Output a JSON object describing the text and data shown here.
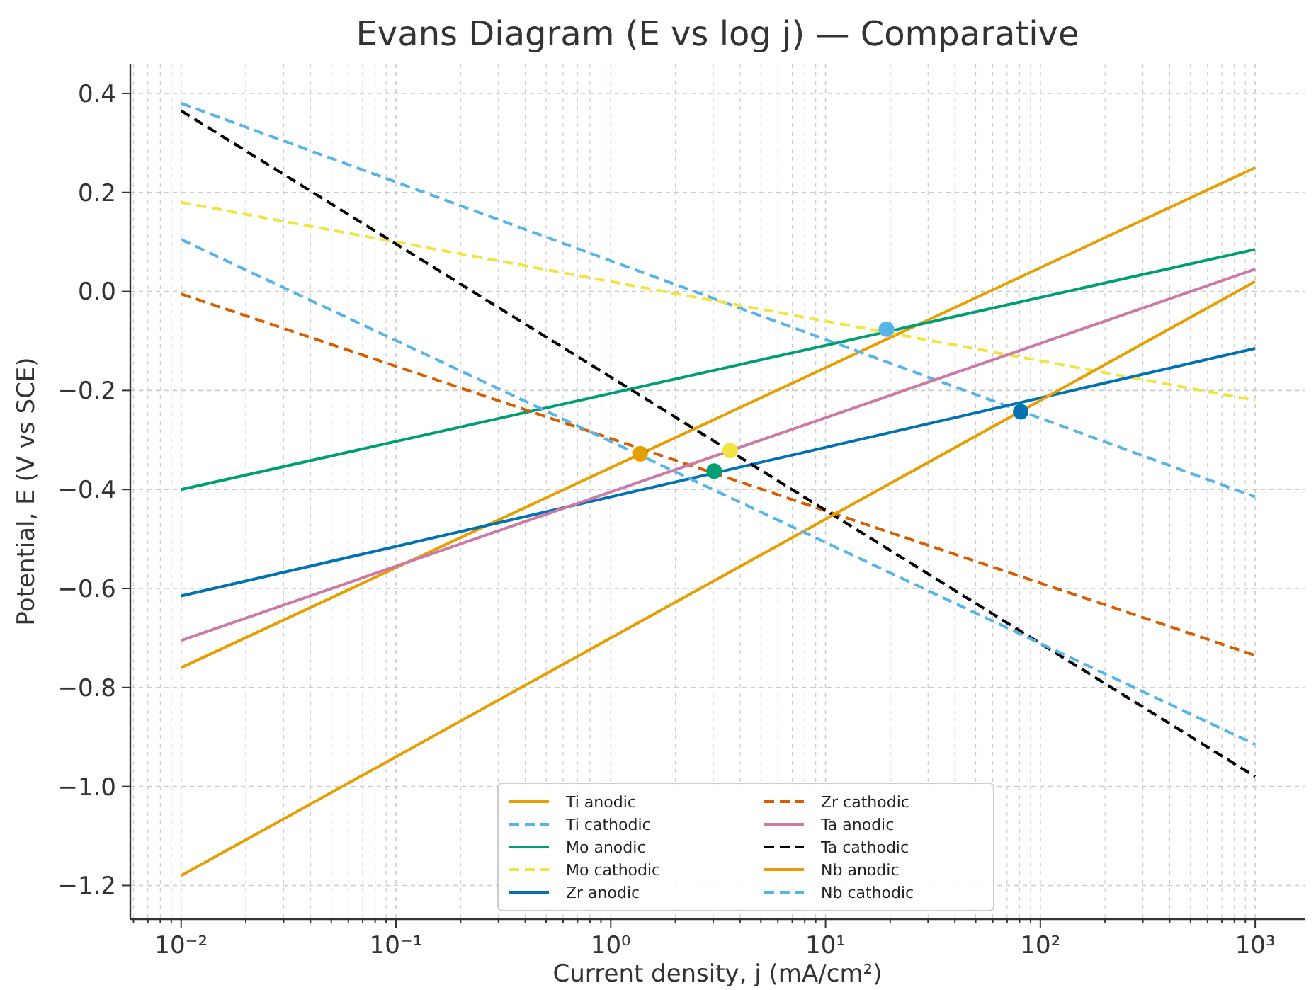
{
  "chart_data": {
    "type": "line",
    "title": "Evans Diagram (E vs log j) — Comparative",
    "xlabel": "Current density, j (mA/cm²)",
    "ylabel": "Potential, E (V vs SCE)",
    "log": "x",
    "grid": true,
    "legend": "bottom",
    "xlim": [
      0.0058,
      1700
    ],
    "ylim": [
      -1.268,
      0.46
    ],
    "xticks": [
      {
        "value": 0.006,
        "label": null
      },
      {
        "value": 0.007,
        "label": null
      },
      {
        "value": 0.008,
        "label": null
      },
      {
        "value": 0.009,
        "label": null
      },
      {
        "value": 0.01,
        "label": "10⁻²"
      },
      {
        "value": 0.02,
        "label": null
      },
      {
        "value": 0.03,
        "label": null
      },
      {
        "value": 0.04,
        "label": null
      },
      {
        "value": 0.05,
        "label": null
      },
      {
        "value": 0.06,
        "label": null
      },
      {
        "value": 0.07,
        "label": null
      },
      {
        "value": 0.08,
        "label": null
      },
      {
        "value": 0.09,
        "label": null
      },
      {
        "value": 0.1,
        "label": "10⁻¹"
      },
      {
        "value": 0.2,
        "label": null
      },
      {
        "value": 0.3,
        "label": null
      },
      {
        "value": 0.4,
        "label": null
      },
      {
        "value": 0.5,
        "label": null
      },
      {
        "value": 0.6,
        "label": null
      },
      {
        "value": 0.7,
        "label": null
      },
      {
        "value": 0.8,
        "label": null
      },
      {
        "value": 0.9,
        "label": null
      },
      {
        "value": 1,
        "label": "10⁰"
      },
      {
        "value": 2,
        "label": null
      },
      {
        "value": 3,
        "label": null
      },
      {
        "value": 4,
        "label": null
      },
      {
        "value": 5,
        "label": null
      },
      {
        "value": 6,
        "label": null
      },
      {
        "value": 7,
        "label": null
      },
      {
        "value": 8,
        "label": null
      },
      {
        "value": 9,
        "label": null
      },
      {
        "value": 10,
        "label": "10¹"
      },
      {
        "value": 20,
        "label": null
      },
      {
        "value": 30,
        "label": null
      },
      {
        "value": 40,
        "label": null
      },
      {
        "value": 50,
        "label": null
      },
      {
        "value": 60,
        "label": null
      },
      {
        "value": 70,
        "label": null
      },
      {
        "value": 80,
        "label": null
      },
      {
        "value": 90,
        "label": null
      },
      {
        "value": 100,
        "label": "10²"
      },
      {
        "value": 200,
        "label": null
      },
      {
        "value": 300,
        "label": null
      },
      {
        "value": 400,
        "label": null
      },
      {
        "value": 500,
        "label": null
      },
      {
        "value": 600,
        "label": null
      },
      {
        "value": 700,
        "label": null
      },
      {
        "value": 800,
        "label": null
      },
      {
        "value": 900,
        "label": null
      },
      {
        "value": 1000,
        "label": "10³"
      }
    ],
    "yticks": [
      {
        "value": -1.2,
        "label": "−1.2"
      },
      {
        "value": -1.0,
        "label": "−1.0"
      },
      {
        "value": -0.8,
        "label": "−0.8"
      },
      {
        "value": -0.6,
        "label": "−0.6"
      },
      {
        "value": -0.4,
        "label": "−0.4"
      },
      {
        "value": -0.2,
        "label": "−0.2"
      },
      {
        "value": 0,
        "label": "0.0"
      },
      {
        "value": 0.2,
        "label": "0.2"
      },
      {
        "value": 0.4,
        "label": "0.4"
      }
    ],
    "series": [
      {
        "name": "Ti anodic",
        "color": "#e69f00",
        "line_style": "solid",
        "x": [
          0.01,
          1000
        ],
        "values": [
          -0.76,
          0.25
        ]
      },
      {
        "name": "Ti cathodic",
        "color": "#56b4e9",
        "line_style": "dashed",
        "x": [
          0.01,
          1000
        ],
        "values": [
          0.38,
          -0.415
        ]
      },
      {
        "name": "Mo anodic",
        "color": "#009e73",
        "line_style": "solid",
        "x": [
          0.01,
          1000
        ],
        "values": [
          -0.4,
          0.085
        ]
      },
      {
        "name": "Mo cathodic",
        "color": "#f0e442",
        "line_style": "dashed",
        "x": [
          0.01,
          1000
        ],
        "values": [
          0.18,
          -0.22
        ]
      },
      {
        "name": "Zr anodic",
        "color": "#0072b2",
        "line_style": "solid",
        "x": [
          0.01,
          1000
        ],
        "values": [
          -0.615,
          -0.115
        ]
      },
      {
        "name": "Zr cathodic",
        "color": "#d55e00",
        "line_style": "dashed",
        "x": [
          0.01,
          1000
        ],
        "values": [
          -0.005,
          -0.735
        ]
      },
      {
        "name": "Ta anodic",
        "color": "#cc79a7",
        "line_style": "solid",
        "x": [
          0.01,
          1000
        ],
        "values": [
          -0.705,
          0.045
        ]
      },
      {
        "name": "Ta cathodic",
        "color": "#000000",
        "line_style": "dashed",
        "x": [
          0.01,
          1000
        ],
        "values": [
          0.365,
          -0.98
        ]
      },
      {
        "name": "Nb anodic",
        "color": "#e69f00",
        "line_style": "solid",
        "x": [
          0.01,
          1000
        ],
        "values": [
          -1.18,
          0.02
        ]
      },
      {
        "name": "Nb cathodic",
        "color": "#56b4e9",
        "line_style": "dashed",
        "x": [
          0.01,
          1000
        ],
        "values": [
          0.105,
          -0.915
        ]
      },
      {
        "type": "scatter",
        "marker": "circle",
        "x": [
          1.37,
          3.6,
          3.03,
          19.2,
          81
        ],
        "values": [
          -0.328,
          -0.321,
          -0.363,
          -0.076,
          -0.243
        ],
        "colors": [
          "#e69f00",
          "#f0e442",
          "#009e73",
          "#56b4e9",
          "#0072b2"
        ]
      }
    ]
  }
}
